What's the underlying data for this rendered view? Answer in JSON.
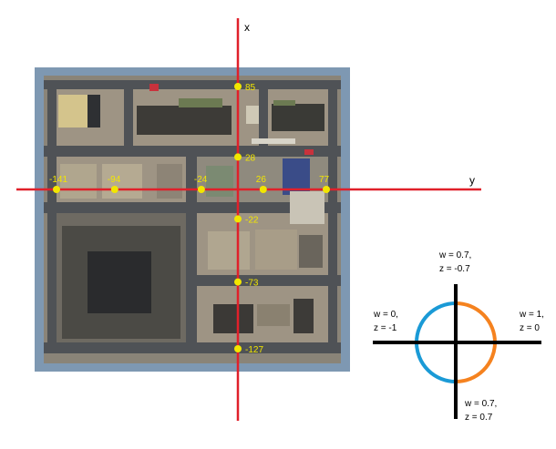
{
  "axes": {
    "x_label": "x",
    "y_label": "y",
    "x_axis_color": "#e0202a",
    "y_axis_color": "#e0202a"
  },
  "marker_color": "#f2e600",
  "x_markers": [
    {
      "label": "85",
      "value": 85
    },
    {
      "label": "28",
      "value": 28
    },
    {
      "label": "-22",
      "value": -22
    },
    {
      "label": "-73",
      "value": -73
    },
    {
      "label": "-127",
      "value": -127
    }
  ],
  "y_markers": [
    {
      "label": "-141",
      "value": -141
    },
    {
      "label": "-94",
      "value": -94
    },
    {
      "label": "-24",
      "value": -24
    },
    {
      "label": "26",
      "value": 26
    },
    {
      "label": "77",
      "value": 77
    }
  ],
  "legend": {
    "arc_color_left": "#1a9ad6",
    "arc_color_right": "#f5821f",
    "axis_color": "#000000",
    "labels": {
      "top_1": "w = 0.7,",
      "top_2": "z = -0.7",
      "left_1": "w = 0,",
      "left_2": "z = -1",
      "right_1": "w = 1,",
      "right_2": "z = 0",
      "bottom_1": "w = 0.7,",
      "bottom_2": "z = 0.7"
    }
  },
  "map_colors": {
    "border": "#7e98b2",
    "ground": "#8a8478",
    "road": "#4f5256",
    "block": "#9e9484",
    "dark_roof": "#2e3033",
    "mid_roof": "#5d5a52"
  }
}
